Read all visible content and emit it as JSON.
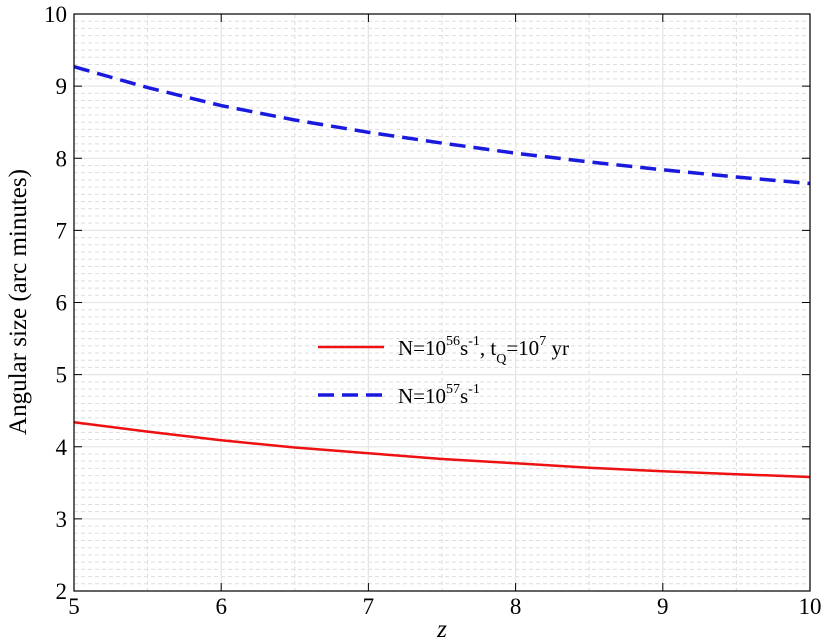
{
  "chart_data": {
    "type": "line",
    "xlabel": "z",
    "ylabel": "Angular size (arc minutes)",
    "xlim": [
      5,
      10
    ],
    "ylim": [
      2,
      10
    ],
    "xticks": [
      5,
      6,
      7,
      8,
      9,
      10
    ],
    "yticks": [
      2,
      3,
      4,
      5,
      6,
      7,
      8,
      9,
      10
    ],
    "grid": true,
    "legend_position": "center",
    "series": [
      {
        "name": "N=10^56 s^-1, t_Q=10^7 yr",
        "legend": {
          "base": "N=10",
          "exp1": "56",
          "mid1": "s",
          "exp2": "-1",
          "mid2": ", t",
          "sub": "Q",
          "mid3": "=10",
          "exp3": "7",
          "tail": " yr"
        },
        "color": "#ee1111",
        "style": "solid",
        "x": [
          5,
          5.5,
          6,
          6.5,
          7,
          7.5,
          8,
          8.5,
          9,
          9.5,
          10
        ],
        "y": [
          4.34,
          4.21,
          4.09,
          3.99,
          3.91,
          3.83,
          3.77,
          3.71,
          3.66,
          3.62,
          3.58
        ]
      },
      {
        "name": "N=10^57 s^-1",
        "legend": {
          "base": "N=10",
          "exp1": "57",
          "mid1": "s",
          "exp2": "-1"
        },
        "color": "#1a1adf",
        "style": "dashed",
        "x": [
          5,
          5.5,
          6,
          6.5,
          7,
          7.5,
          8,
          8.5,
          9,
          9.5,
          10
        ],
        "y": [
          9.27,
          8.98,
          8.73,
          8.53,
          8.36,
          8.21,
          8.07,
          7.95,
          7.84,
          7.74,
          7.65
        ]
      }
    ]
  }
}
